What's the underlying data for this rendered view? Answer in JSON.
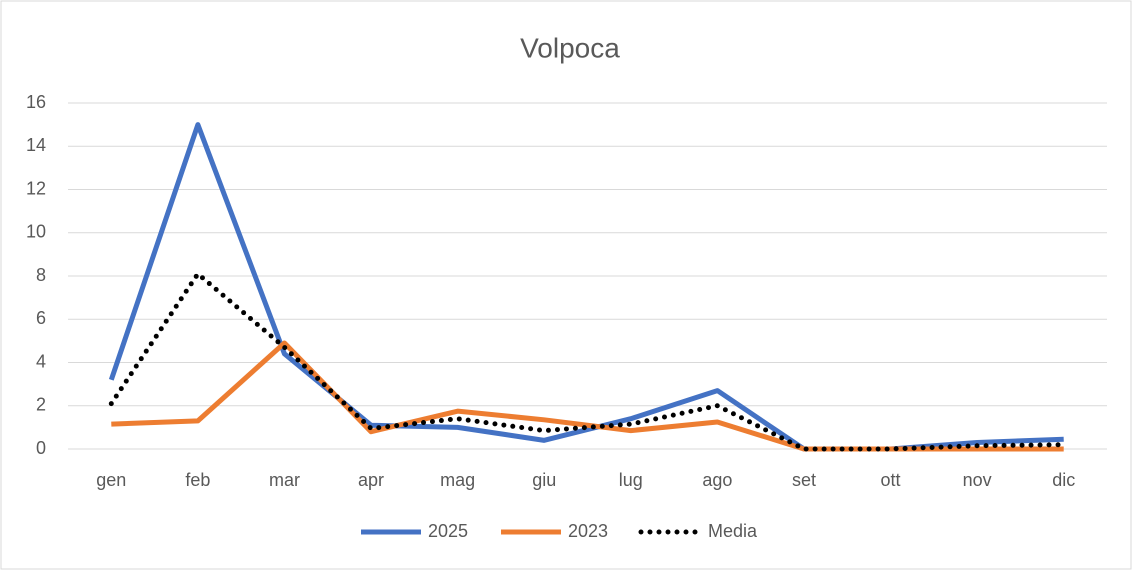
{
  "chart_data": {
    "type": "line",
    "title": "Volpoca",
    "categories": [
      "gen",
      "feb",
      "mar",
      "apr",
      "mag",
      "giu",
      "lug",
      "ago",
      "set",
      "ott",
      "nov",
      "dic"
    ],
    "series": [
      {
        "name": "2025",
        "color": "#4472c4",
        "style": "solid",
        "values": [
          3.2,
          15,
          4.4,
          1.1,
          1.0,
          0.4,
          1.4,
          2.7,
          0,
          0,
          0.3,
          0.45
        ]
      },
      {
        "name": "2023",
        "color": "#ed7d31",
        "style": "solid",
        "values": [
          1.15,
          1.3,
          4.9,
          0.8,
          1.75,
          1.35,
          0.85,
          1.25,
          0,
          0,
          0,
          0
        ]
      },
      {
        "name": "Media",
        "color": "#000000",
        "style": "dotted",
        "values": [
          2.1,
          8.1,
          4.7,
          0.95,
          1.4,
          0.85,
          1.15,
          2.0,
          0,
          0,
          0.15,
          0.2
        ]
      }
    ],
    "ylim": [
      0,
      16
    ],
    "yticks": [
      0,
      2,
      4,
      6,
      8,
      10,
      12,
      14,
      16
    ],
    "grid": true,
    "legend": "bottom"
  }
}
